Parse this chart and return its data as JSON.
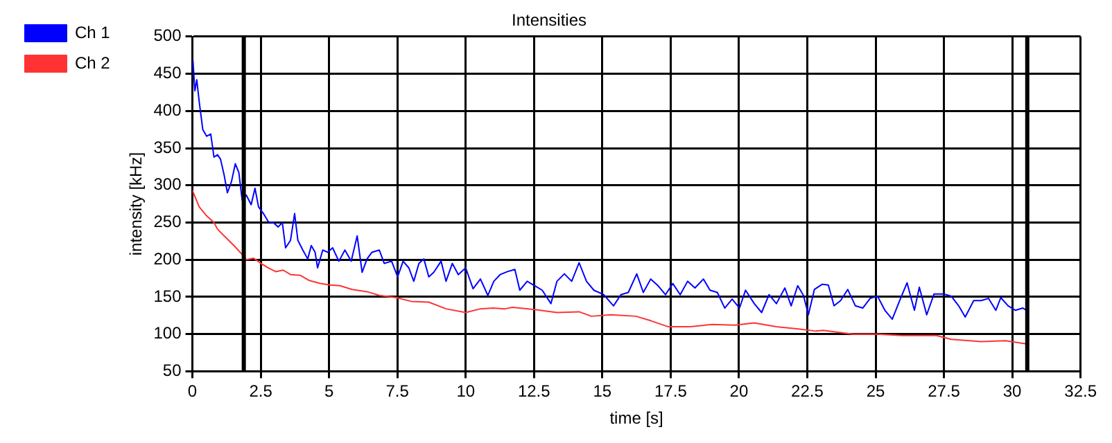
{
  "chart_data": {
    "type": "line",
    "title": "Intensities",
    "xlabel": "time [s]",
    "ylabel": "intensity [kHz]",
    "xlim": [
      0,
      32.5
    ],
    "xticks": [
      0,
      2.5,
      5,
      7.5,
      10,
      12.5,
      15,
      17.5,
      20,
      22.5,
      25,
      27.5,
      30,
      32.5
    ],
    "ylim": [
      50,
      500
    ],
    "yticks": [
      50,
      100,
      150,
      200,
      250,
      300,
      350,
      400,
      450,
      500
    ],
    "grid": true,
    "legend": "top left",
    "marker": "none",
    "line_style": "solid",
    "ref_lines": [
      {
        "axis": "x",
        "value": 1.88,
        "color": "#000000"
      },
      {
        "axis": "x",
        "value": 30.55,
        "color": "#000000"
      }
    ],
    "series": [
      {
        "name": "Ch 1",
        "color": "#0000ff",
        "x": [
          0.02,
          0.09,
          0.16,
          0.25,
          0.38,
          0.52,
          0.67,
          0.79,
          0.92,
          1.03,
          1.16,
          1.28,
          1.43,
          1.57,
          1.7,
          1.82,
          1.97,
          2.15,
          2.29,
          2.42,
          2.6,
          2.78,
          2.96,
          3.14,
          3.29,
          3.41,
          3.59,
          3.74,
          3.86,
          4.04,
          4.22,
          4.35,
          4.49,
          4.58,
          4.77,
          4.95,
          5.13,
          5.36,
          5.58,
          5.81,
          6.03,
          6.21,
          6.39,
          6.57,
          6.84,
          7.02,
          7.29,
          7.51,
          7.71,
          7.92,
          8.1,
          8.29,
          8.47,
          8.65,
          8.83,
          9.1,
          9.28,
          9.51,
          9.73,
          10.0,
          10.27,
          10.54,
          10.81,
          11.03,
          11.26,
          11.53,
          11.8,
          11.98,
          12.25,
          12.53,
          12.8,
          13.12,
          13.34,
          13.61,
          13.88,
          14.15,
          14.42,
          14.69,
          15.05,
          15.41,
          15.68,
          15.95,
          16.26,
          16.5,
          16.77,
          17.04,
          17.31,
          17.58,
          17.85,
          18.12,
          18.39,
          18.7,
          18.94,
          19.21,
          19.48,
          19.75,
          20.02,
          20.24,
          20.56,
          20.83,
          21.1,
          21.37,
          21.68,
          21.91,
          22.15,
          22.36,
          22.54,
          22.76,
          23.05,
          23.27,
          23.48,
          23.72,
          23.98,
          24.26,
          24.53,
          24.8,
          25.07,
          25.34,
          25.61,
          25.88,
          26.15,
          26.42,
          26.6,
          26.87,
          27.14,
          27.5,
          27.77,
          28.04,
          28.28,
          28.59,
          28.86,
          29.13,
          29.4,
          29.58,
          29.85,
          30.12,
          30.39,
          30.52
        ],
        "values": [
          468,
          427,
          442,
          412,
          375,
          366,
          369,
          338,
          341,
          335,
          314,
          290,
          305,
          329,
          317,
          280,
          287,
          274,
          296,
          271,
          262,
          251,
          250,
          244,
          250,
          216,
          226,
          262,
          226,
          213,
          201,
          219,
          210,
          189,
          213,
          210,
          216,
          198,
          213,
          198,
          232,
          183,
          201,
          210,
          213,
          195,
          198,
          177,
          198,
          189,
          171,
          195,
          201,
          177,
          183,
          198,
          171,
          195,
          180,
          189,
          161,
          174,
          152,
          171,
          180,
          184,
          187,
          159,
          171,
          165,
          159,
          141,
          171,
          181,
          171,
          196,
          171,
          159,
          153,
          138,
          153,
          156,
          181,
          156,
          174,
          165,
          153,
          168,
          153,
          171,
          162,
          174,
          159,
          156,
          135,
          147,
          135,
          159,
          141,
          129,
          153,
          141,
          162,
          138,
          165,
          152,
          126,
          160,
          167,
          166,
          138,
          145,
          160,
          138,
          135,
          148,
          151,
          132,
          120,
          145,
          169,
          132,
          163,
          126,
          154,
          154,
          151,
          138,
          123,
          145,
          145,
          148,
          132,
          149,
          138,
          132,
          135,
          132
        ]
      },
      {
        "name": "Ch 2",
        "color": "#ff3333",
        "x": [
          0,
          0.25,
          0.52,
          0.79,
          0.92,
          1.16,
          1.52,
          1.82,
          1.97,
          2.24,
          2.51,
          2.78,
          3.05,
          3.32,
          3.59,
          3.95,
          4.28,
          4.68,
          5.04,
          5.4,
          5.85,
          6.39,
          6.84,
          7.47,
          8.01,
          8.65,
          9.28,
          10.0,
          10.54,
          11.0,
          11.44,
          11.71,
          12.53,
          13.34,
          14.15,
          14.6,
          15.32,
          16.23,
          16.77,
          17.4,
          18.21,
          19.03,
          19.84,
          20.56,
          21.37,
          22.18,
          22.82,
          23.08,
          24.17,
          25.07,
          25.97,
          27.23,
          27.77,
          28.86,
          29.76,
          30.3,
          30.52
        ],
        "values": [
          293,
          271,
          259,
          250,
          241,
          232,
          219,
          207,
          200,
          202,
          195,
          189,
          184,
          186,
          180,
          179,
          172,
          168,
          166,
          165,
          160,
          157,
          152,
          149,
          144,
          143,
          134,
          129,
          134,
          135,
          134,
          136,
          133,
          129,
          130,
          124,
          126,
          124,
          118,
          110,
          110,
          113,
          112,
          115,
          110,
          107,
          104,
          105,
          100,
          100,
          98,
          98,
          93,
          90,
          91,
          88,
          87
        ]
      }
    ]
  }
}
